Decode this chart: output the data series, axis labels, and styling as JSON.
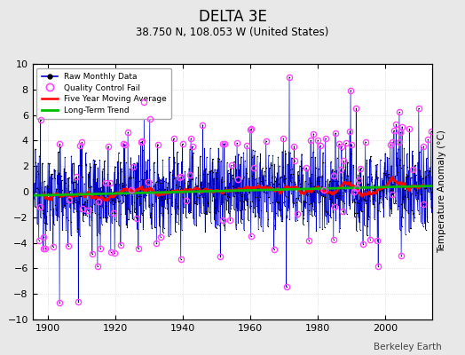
{
  "title": "DELTA 3E",
  "subtitle": "38.750 N, 108.053 W (United States)",
  "watermark": "Berkeley Earth",
  "year_start": 1896,
  "year_end": 2013,
  "ylim": [
    -10,
    10
  ],
  "yticks": [
    -10,
    -8,
    -6,
    -4,
    -2,
    0,
    2,
    4,
    6,
    8,
    10
  ],
  "xticks": [
    1900,
    1920,
    1940,
    1960,
    1980,
    2000
  ],
  "ylabel": "Temperature Anomaly (°C)",
  "bg_color": "#e8e8e8",
  "plot_bg_color": "#ffffff",
  "stem_color": "#6699ff",
  "line_color": "#0000cc",
  "dot_color": "#000000",
  "qc_fail_color": "#ff44ff",
  "moving_avg_color": "#ff0000",
  "trend_color": "#00bb00",
  "grid_color": "#cccccc",
  "seed": 12345,
  "noise_scale": 1.8,
  "qc_fail_rate": 0.05
}
